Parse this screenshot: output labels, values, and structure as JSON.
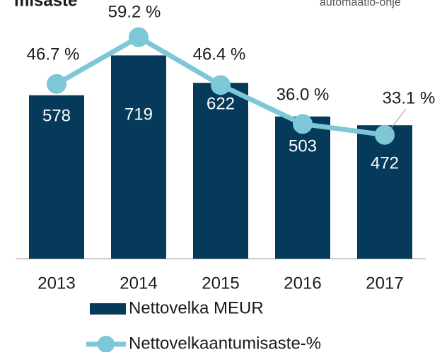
{
  "chart_data": {
    "type": "bar",
    "title": "misaste",
    "subtitle": "automaatio-ohje",
    "categories": [
      "2013",
      "2014",
      "2015",
      "2016",
      "2017"
    ],
    "series": [
      {
        "name": "Nettovelka MEUR",
        "type": "bar",
        "color": "#063a5b",
        "values": [
          578,
          719,
          622,
          503,
          472
        ]
      },
      {
        "name": "Nettovelkaantumisaste-%",
        "type": "line",
        "axis": "y2",
        "color": "#7dc7d7",
        "values": [
          46.7,
          59.2,
          46.4,
          36.0,
          33.1
        ],
        "value_labels": [
          "46.7 %",
          "59.2 %",
          "46.4 %",
          "36.0 %",
          "33.1 %"
        ]
      }
    ],
    "ylim": [
      0,
      900
    ],
    "y2lim": [
      0,
      68
    ]
  }
}
